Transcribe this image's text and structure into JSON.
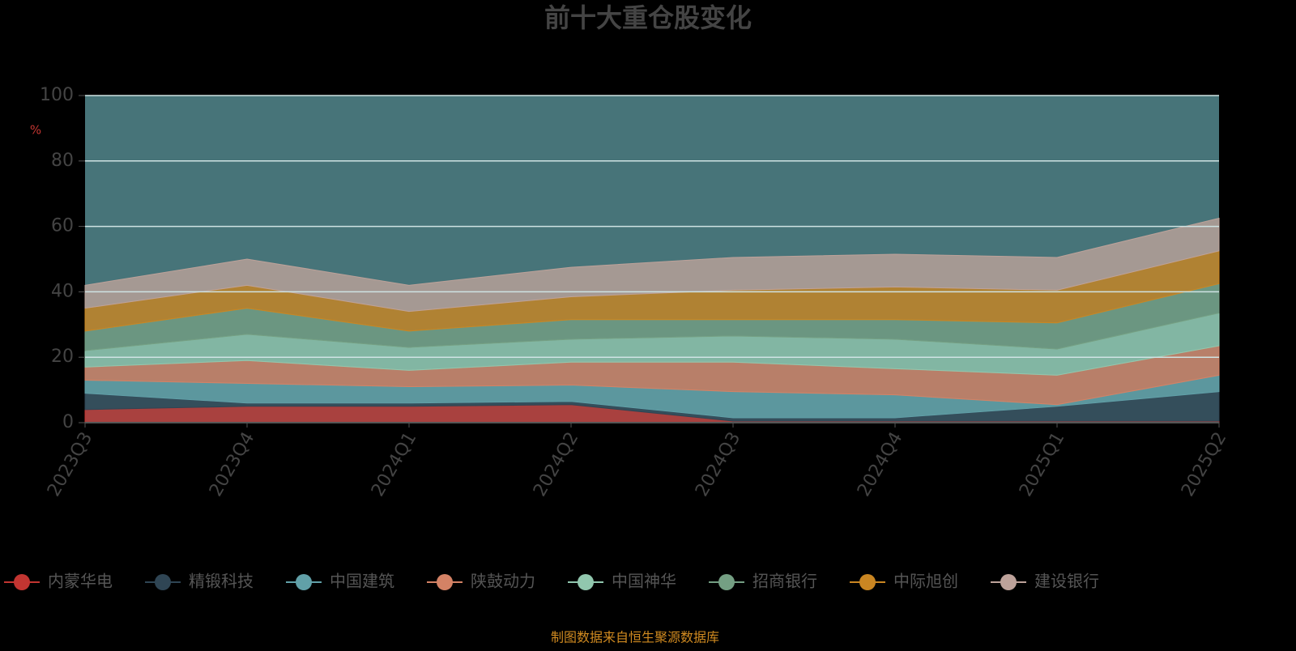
{
  "chart_data": {
    "type": "stacked-area",
    "title": "前十大重仓股变化",
    "y_label": "%",
    "source": "制图数据来自恒生聚源数据库",
    "categories": [
      "2023Q3",
      "2023Q4",
      "2024Q1",
      "2024Q2",
      "2024Q3",
      "2024Q4",
      "2025Q1",
      "2025Q2"
    ],
    "ylim": [
      0,
      100
    ],
    "yticks": [
      0,
      20,
      40,
      60,
      80,
      100
    ],
    "grid": true,
    "series": [
      {
        "name": "内蒙华电",
        "color": "#c23531",
        "values": [
          4,
          5,
          5,
          5.5,
          0.5,
          0.5,
          0.5,
          0.5
        ]
      },
      {
        "name": "精锻科技",
        "color": "#2f4554",
        "values": [
          5,
          1,
          1,
          1,
          1,
          1,
          4.5,
          9
        ]
      },
      {
        "name": "中国建筑",
        "color": "#61a0a8",
        "values": [
          4,
          6,
          5,
          5,
          8,
          7,
          0.5,
          5
        ]
      },
      {
        "name": "陕鼓动力",
        "color": "#d48265",
        "values": [
          4,
          7,
          5,
          7,
          9,
          8,
          9,
          9
        ]
      },
      {
        "name": "中国神华",
        "color": "#91c7ae",
        "values": [
          5,
          8,
          7,
          7,
          8,
          9,
          8,
          10
        ]
      },
      {
        "name": "招商银行",
        "color": "#749f83",
        "values": [
          6,
          8,
          5,
          6,
          5,
          6,
          8,
          9
        ]
      },
      {
        "name": "中际旭创",
        "color": "#ca8622",
        "values": [
          7,
          7,
          6,
          7,
          9,
          10,
          10,
          10
        ]
      },
      {
        "name": "建设银行",
        "color": "#bda29a",
        "values": [
          7,
          8,
          8,
          9,
          10,
          10,
          10,
          10
        ]
      }
    ]
  }
}
